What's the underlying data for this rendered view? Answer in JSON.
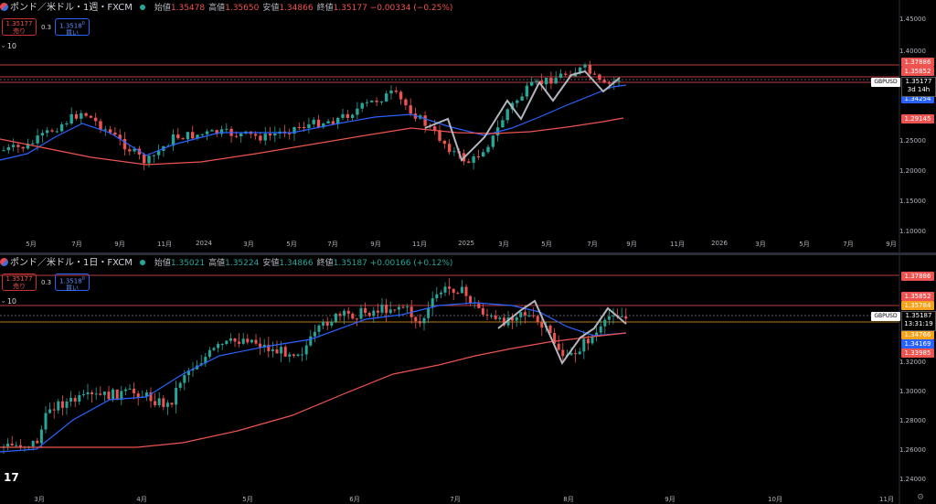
{
  "weekly": {
    "title": "ポンド／米ドル・1週・FXCM",
    "open_label": "始値",
    "open": "1.35478",
    "high_label": "高値",
    "high": "1.35650",
    "low_label": "安値",
    "low": "1.34866",
    "close_label": "終値",
    "close": "1.35177",
    "change": "−0.00334 (−0.25%)",
    "sell_price": "1.35177",
    "sell_label": "売り",
    "spread": "0.3",
    "buy_price": "1.3518",
    "buy_sup": "0",
    "buy_label": "買い",
    "ma_label": "10",
    "y_ticks": [
      "1.45000",
      "1.40000",
      "1.25000",
      "1.20000",
      "1.15000",
      "1.10000"
    ],
    "x_ticks": [
      "5月",
      "7月",
      "9月",
      "11月",
      "2024",
      "3月",
      "5月",
      "7月",
      "9月",
      "11月",
      "2025",
      "3月",
      "5月",
      "7月",
      "9月",
      "11月",
      "2026",
      "3月",
      "5月",
      "7月",
      "9月"
    ],
    "price_labels": [
      {
        "text": "1.37886",
        "color": "#ef5350"
      },
      {
        "text": "1.35852",
        "color": "#ef5350"
      },
      {
        "text": "1.34254",
        "color": "#2962ff"
      },
      {
        "text": "1.29145",
        "color": "#ef5350"
      }
    ],
    "symbol": "GBPUSD",
    "current_price": "1.35177",
    "countdown": "3d 14h"
  },
  "daily": {
    "title": "ポンド／米ドル・1日・FXCM",
    "open_label": "始値",
    "open": "1.35021",
    "high_label": "高値",
    "high": "1.35224",
    "low_label": "安値",
    "low": "1.34866",
    "close_label": "終値",
    "close": "1.35187",
    "change": "+0.00166 (+0.12%)",
    "sell_price": "1.35177",
    "sell_label": "売り",
    "spread": "0.3",
    "buy_price": "1.3518",
    "buy_sup": "0",
    "buy_label": "買い",
    "ma_label": "10",
    "y_ticks": [
      "1.32000",
      "1.30000",
      "1.28000",
      "1.26000",
      "1.24000"
    ],
    "x_ticks": [
      "3月",
      "4月",
      "5月",
      "6月",
      "7月",
      "8月",
      "9月",
      "10月",
      "11月"
    ],
    "price_labels": [
      {
        "text": "1.37886",
        "color": "#ef5350"
      },
      {
        "text": "1.35852",
        "color": "#ef5350"
      },
      {
        "text": "1.35784",
        "color": "#f7a21b"
      },
      {
        "text": "1.34766",
        "color": "#f7a21b"
      },
      {
        "text": "1.34169",
        "color": "#2962ff"
      },
      {
        "text": "1.33985",
        "color": "#ef5350"
      }
    ],
    "symbol": "GBPUSD",
    "current_price": "1.35187",
    "countdown": "13:31:19"
  },
  "colors": {
    "up": "#26a69a",
    "down": "#ef5350",
    "ma_fast": "#2962ff",
    "ma_slow": "#ef5350",
    "zigzag": "#b2b5be"
  }
}
